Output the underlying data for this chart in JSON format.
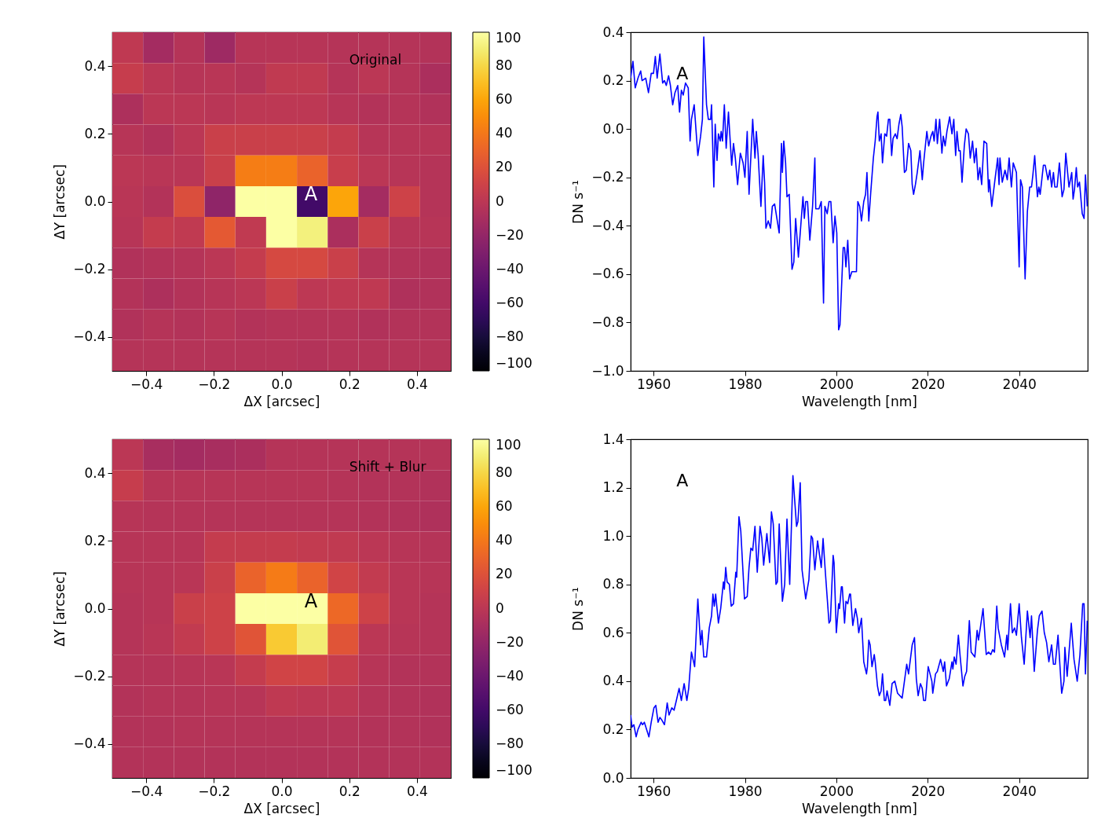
{
  "chart_data": [
    {
      "type": "heatmap",
      "xlabel": "ΔX [arcsec]",
      "ylabel": "ΔY [arcsec]",
      "cells": [
        [
          2,
          -12,
          -3,
          -15,
          -2,
          -2,
          -2,
          -3,
          -3,
          -3,
          -4
        ],
        [
          6,
          0,
          -2,
          -1,
          -3,
          3,
          3,
          -3,
          0,
          -3,
          -8
        ],
        [
          -7,
          0,
          0,
          -1,
          1,
          1,
          1,
          -2,
          -4,
          -3,
          -5
        ],
        [
          -2,
          -5,
          0,
          8,
          8,
          8,
          8,
          5,
          -2,
          -2,
          -2
        ],
        [
          0,
          -1,
          -1,
          8,
          43,
          43,
          30,
          7,
          0,
          -2,
          -3
        ],
        [
          -1,
          -4,
          18,
          -22,
          100,
          100,
          -60,
          60,
          -12,
          10,
          -3
        ],
        [
          -2,
          5,
          3,
          25,
          3,
          100,
          92,
          -8,
          8,
          -2,
          -2
        ],
        [
          -5,
          -4,
          -3,
          0,
          5,
          15,
          15,
          8,
          -3,
          -4,
          -5
        ],
        [
          -4,
          -7,
          -4,
          -2,
          0,
          8,
          1,
          2,
          2,
          -6,
          -5
        ],
        [
          -5,
          -3,
          -4,
          -2,
          -4,
          -3,
          -3,
          -3,
          -5,
          -4,
          -4
        ],
        [
          -3,
          -3,
          -3,
          -3,
          -3,
          -3,
          -4,
          -3,
          -3,
          -3,
          -3
        ]
      ],
      "clim": [
        -100,
        100
      ],
      "cticks": [
        100,
        80,
        60,
        40,
        20,
        0,
        -20,
        -40,
        -60,
        -80,
        -100
      ],
      "xlim": [
        -0.5,
        0.5
      ],
      "ylim": [
        -0.5,
        0.5
      ],
      "xticks": [
        -0.4,
        -0.2,
        {
          "value": 0.0,
          "label": "0.0"
        },
        0.2,
        0.4
      ],
      "yticks": [
        -0.4,
        -0.2,
        {
          "value": 0.0,
          "label": "0.0"
        },
        0.2,
        0.4
      ],
      "annotations": [
        "Original",
        "A"
      ],
      "grid": false
    },
    {
      "type": "line",
      "xlabel": "Wavelength [nm]",
      "ylabel": "DN s⁻¹",
      "x": [
        1955.0,
        1955.5,
        1956.0,
        1956.6,
        1957.2,
        1957.5,
        1958.3,
        1958.9,
        1959.5,
        1960.0,
        1960.4,
        1960.8,
        1961.4,
        1962.0,
        1962.4,
        1962.8,
        1963.3,
        1963.7,
        1964.2,
        1964.7,
        1965.3,
        1965.7,
        1966.1,
        1966.5,
        1967.0,
        1967.6,
        1968.0,
        1968.3,
        1968.9,
        1969.7,
        1970.3,
        1970.7,
        1971.0,
        1971.6,
        1972.0,
        1972.5,
        1972.7,
        1973.2,
        1973.5,
        1973.9,
        1974.2,
        1974.6,
        1974.8,
        1975.1,
        1975.5,
        1975.9,
        1976.4,
        1977.1,
        1977.5,
        1977.9,
        1978.4,
        1979.0,
        1979.6,
        1980.0,
        1980.5,
        1980.9,
        1981.7,
        1982.2,
        1982.5,
        1982.9,
        1983.5,
        1984.0,
        1984.3,
        1984.6,
        1985.1,
        1985.6,
        1986.0,
        1986.5,
        1987.0,
        1987.5,
        1988.0,
        1988.2,
        1988.5,
        1988.9,
        1989.2,
        1989.7,
        1990.3,
        1990.7,
        1991.1,
        1991.7,
        1992.7,
        1993.0,
        1993.3,
        1993.7,
        1994.2,
        1994.8,
        1995.3,
        1995.5,
        1996.2,
        1996.7,
        1997.2,
        1997.5,
        1998.0,
        1998.4,
        1998.8,
        1999.3,
        1999.7,
        2000.1,
        2000.5,
        2000.8,
        2001.5,
        2001.8,
        2002.1,
        2002.5,
        2002.9,
        2003.4,
        2004.0,
        2004.4,
        2004.7,
        2005.1,
        2005.5,
        2006.0,
        2006.4,
        2006.7,
        2007.1,
        2007.5,
        2008.1,
        2008.5,
        2008.9,
        2009.1,
        2009.4,
        2009.8,
        2010.1,
        2010.6,
        2011.0,
        2011.4,
        2011.7,
        2012.1,
        2012.4,
        2012.9,
        2013.3,
        2013.7,
        2014.1,
        2014.4,
        2014.9,
        2015.3,
        2015.8,
        2016.3,
        2016.6,
        2016.9,
        2017.3,
        2017.7,
        2018.3,
        2018.8,
        2019.1,
        2019.8,
        2020.2,
        2020.7,
        2021.1,
        2021.4,
        2021.8,
        2022.1,
        2022.6,
        2023.1,
        2023.4,
        2023.8,
        2024.2,
        2024.8,
        2025.3,
        2025.7,
        2026.1,
        2026.4,
        2026.8,
        2027.1,
        2027.5,
        2028.0,
        2028.4,
        2028.9,
        2029.3,
        2029.8,
        2030.2,
        2030.6,
        2031.0,
        2031.4,
        2031.8,
        2032.3,
        2032.9,
        2033.3,
        2033.5,
        2034.0,
        2034.7,
        2035.3,
        2035.6,
        2035.8,
        2036.3,
        2036.9,
        2037.4,
        2037.8,
        2038.3,
        2038.7,
        2039.4,
        2040.0,
        2040.3,
        2040.7,
        2041.3,
        2041.8,
        2042.3,
        2042.7,
        2043.0,
        2043.4,
        2044.0,
        2044.3,
        2044.6,
        2045.3,
        2045.7,
        2046.3,
        2046.7,
        2047.1,
        2047.5,
        2047.8,
        2048.3,
        2048.8,
        2049.4,
        2049.8,
        2050.2,
        2050.9,
        2051.5,
        2051.8,
        2052.1,
        2052.5,
        2052.8,
        2053.2,
        2053.8,
        2054.2,
        2054.5,
        2054.9
      ],
      "series": [
        {
          "color": "#0000ff",
          "values": [
            0.21,
            0.28,
            0.17,
            0.21,
            0.24,
            0.2,
            0.21,
            0.15,
            0.23,
            0.23,
            0.3,
            0.21,
            0.31,
            0.19,
            0.2,
            0.18,
            0.22,
            0.18,
            0.1,
            0.15,
            0.18,
            0.07,
            0.16,
            0.14,
            0.19,
            0.17,
            -0.05,
            0.04,
            0.1,
            -0.11,
            -0.03,
            0.04,
            0.38,
            0.1,
            0.04,
            0.04,
            0.1,
            -0.24,
            0.02,
            -0.13,
            -0.02,
            -0.05,
            -0.01,
            -0.05,
            0.1,
            -0.08,
            0.07,
            -0.15,
            -0.06,
            -0.12,
            -0.23,
            -0.1,
            -0.14,
            -0.2,
            -0.01,
            -0.27,
            0.04,
            -0.12,
            -0.01,
            -0.11,
            -0.32,
            -0.11,
            -0.22,
            -0.41,
            -0.38,
            -0.41,
            -0.32,
            -0.31,
            -0.37,
            -0.43,
            -0.06,
            -0.18,
            -0.05,
            -0.14,
            -0.28,
            -0.27,
            -0.58,
            -0.55,
            -0.37,
            -0.53,
            -0.28,
            -0.37,
            -0.3,
            -0.3,
            -0.46,
            -0.32,
            -0.12,
            -0.33,
            -0.33,
            -0.3,
            -0.72,
            -0.32,
            -0.35,
            -0.3,
            -0.3,
            -0.47,
            -0.36,
            -0.43,
            -0.83,
            -0.81,
            -0.49,
            -0.49,
            -0.57,
            -0.46,
            -0.62,
            -0.59,
            -0.59,
            -0.59,
            -0.3,
            -0.32,
            -0.38,
            -0.3,
            -0.27,
            -0.18,
            -0.38,
            -0.27,
            -0.12,
            -0.05,
            0.05,
            0.07,
            -0.05,
            -0.02,
            -0.14,
            -0.02,
            -0.03,
            0.04,
            0.04,
            -0.11,
            -0.04,
            -0.02,
            -0.04,
            0.02,
            0.06,
            0.01,
            -0.18,
            -0.17,
            -0.06,
            -0.09,
            -0.23,
            -0.27,
            -0.23,
            -0.18,
            -0.09,
            -0.21,
            -0.14,
            -0.01,
            -0.07,
            -0.03,
            -0.01,
            -0.05,
            0.04,
            -0.06,
            0.04,
            -0.1,
            -0.03,
            -0.07,
            -0.01,
            0.05,
            -0.02,
            0.04,
            -0.11,
            -0.01,
            -0.09,
            -0.09,
            -0.22,
            -0.07,
            0.0,
            -0.02,
            -0.12,
            -0.05,
            -0.14,
            -0.08,
            -0.21,
            -0.16,
            -0.23,
            -0.05,
            -0.06,
            -0.26,
            -0.21,
            -0.32,
            -0.21,
            -0.12,
            -0.23,
            -0.12,
            -0.22,
            -0.17,
            -0.21,
            -0.12,
            -0.24,
            -0.14,
            -0.18,
            -0.57,
            -0.21,
            -0.24,
            -0.62,
            -0.34,
            -0.24,
            -0.24,
            -0.19,
            -0.11,
            -0.28,
            -0.24,
            -0.27,
            -0.15,
            -0.15,
            -0.21,
            -0.17,
            -0.24,
            -0.18,
            -0.24,
            -0.24,
            -0.14,
            -0.28,
            -0.25,
            -0.1,
            -0.24,
            -0.18,
            -0.29,
            -0.25,
            -0.16,
            -0.24,
            -0.22,
            -0.35,
            -0.37,
            -0.19,
            -0.32
          ]
        }
      ],
      "xlim": [
        1955,
        2055
      ],
      "ylim": [
        -1.0,
        0.4
      ],
      "xticks": [
        1960,
        1980,
        2000,
        2020,
        2040
      ],
      "yticks": [
        {
          "value": -1.0,
          "label": "−1.0"
        },
        -0.8,
        -0.6,
        -0.4,
        -0.2,
        {
          "value": 0.0,
          "label": "0.0"
        },
        0.2,
        0.4
      ],
      "annotations": [
        "A"
      ],
      "grid": false
    },
    {
      "type": "heatmap",
      "xlabel": "ΔX [arcsec]",
      "ylabel": "ΔY [arcsec]",
      "cells": [
        [
          0,
          -10,
          -12,
          -10,
          -8,
          -3,
          -3,
          -3,
          -3,
          -3,
          -3
        ],
        [
          6,
          -2,
          -2,
          -2,
          -2,
          -2,
          -2,
          -3,
          -4,
          -4,
          -5
        ],
        [
          -2,
          -3,
          -3,
          -3,
          -3,
          -3,
          -3,
          -3,
          -4,
          -5,
          -6
        ],
        [
          -2,
          -2,
          -2,
          5,
          5,
          5,
          4,
          3,
          0,
          -2,
          -3
        ],
        [
          -2,
          -2,
          -1,
          8,
          30,
          42,
          30,
          12,
          4,
          -1,
          -2
        ],
        [
          -3,
          -2,
          8,
          10,
          100,
          100,
          100,
          33,
          10,
          -1,
          -3
        ],
        [
          -3,
          -1,
          4,
          10,
          22,
          75,
          90,
          22,
          0,
          -2,
          -3
        ],
        [
          -3,
          -3,
          -2,
          -1,
          5,
          12,
          12,
          6,
          -2,
          -4,
          -4
        ],
        [
          -4,
          -3,
          -3,
          -2,
          -2,
          2,
          1,
          1,
          -3,
          -4,
          -5
        ],
        [
          -4,
          -4,
          -3,
          -3,
          -3,
          -3,
          -3,
          -3,
          -4,
          -4,
          -5
        ],
        [
          -4,
          -4,
          -4,
          -4,
          -4,
          -4,
          -4,
          -4,
          -4,
          -4,
          -4
        ]
      ],
      "clim": [
        -100,
        100
      ],
      "cticks": [
        100,
        80,
        60,
        40,
        20,
        0,
        -20,
        -40,
        -60,
        -80,
        -100
      ],
      "xlim": [
        -0.5,
        0.5
      ],
      "ylim": [
        -0.5,
        0.5
      ],
      "xticks": [
        -0.4,
        -0.2,
        {
          "value": 0.0,
          "label": "0.0"
        },
        0.2,
        0.4
      ],
      "yticks": [
        -0.4,
        -0.2,
        {
          "value": 0.0,
          "label": "0.0"
        },
        0.2,
        0.4
      ],
      "annotations": [
        "Shift + Blur",
        "A"
      ],
      "grid": false
    },
    {
      "type": "line",
      "xlabel": "Wavelength [nm]",
      "ylabel": "DN s⁻¹",
      "x": [
        1955.0,
        1955.3,
        1955.7,
        1956.2,
        1956.6,
        1957.3,
        1957.6,
        1958.0,
        1958.5,
        1959.0,
        1959.5,
        1960.1,
        1960.5,
        1961.0,
        1961.4,
        1961.8,
        1962.4,
        1963.0,
        1963.4,
        1964.0,
        1964.5,
        1965.0,
        1965.6,
        1966.1,
        1966.7,
        1967.3,
        1967.7,
        1968.3,
        1969.0,
        1969.7,
        1970.3,
        1970.6,
        1971.0,
        1971.6,
        1972.2,
        1972.7,
        1973.0,
        1973.3,
        1973.6,
        1974.2,
        1974.7,
        1975.3,
        1975.5,
        1975.8,
        1976.1,
        1976.6,
        1977.0,
        1977.5,
        1978.0,
        1978.2,
        1978.7,
        1979.1,
        1979.9,
        1980.5,
        1980.9,
        1981.3,
        1981.7,
        1982.2,
        1982.7,
        1983.3,
        1983.7,
        1984.1,
        1984.8,
        1985.4,
        1985.8,
        1986.2,
        1986.8,
        1987.1,
        1987.5,
        1988.2,
        1988.7,
        1989.2,
        1989.8,
        1990.5,
        1991.3,
        1991.6,
        1992.1,
        1992.5,
        1993.3,
        1994.0,
        1994.5,
        1994.8,
        1995.3,
        1995.9,
        1996.7,
        1997.1,
        1997.6,
        1998.4,
        1998.7,
        1999.3,
        1999.5,
        2000.0,
        2000.5,
        2000.7,
        2001.1,
        2001.3,
        2001.8,
        2002.1,
        2002.5,
        2002.9,
        2003.1,
        2003.6,
        2004.2,
        2004.6,
        2004.9,
        2005.5,
        2006.0,
        2006.6,
        2006.8,
        2007.1,
        2007.4,
        2007.8,
        2008.3,
        2008.5,
        2009.0,
        2009.4,
        2009.8,
        2010.1,
        2010.5,
        2010.8,
        2011.1,
        2011.7,
        2012.2,
        2012.8,
        2013.4,
        2014.4,
        2014.9,
        2015.4,
        2015.8,
        2016.6,
        2017.1,
        2017.5,
        2017.9,
        2018.4,
        2018.8,
        2019.1,
        2019.5,
        2020.1,
        2020.9,
        2021.1,
        2021.7,
        2022.1,
        2022.8,
        2023.4,
        2023.7,
        2024.1,
        2024.7,
        2025.3,
        2025.5,
        2025.8,
        2026.2,
        2026.7,
        2027.1,
        2027.7,
        2028.1,
        2028.5,
        2029.1,
        2029.5,
        2030.3,
        2030.8,
        2031.1,
        2031.5,
        2032.1,
        2032.8,
        2033.3,
        2033.8,
        2034.2,
        2034.6,
        2035.1,
        2035.4,
        2036.1,
        2036.8,
        2037.3,
        2037.5,
        2038.1,
        2038.5,
        2039.0,
        2039.4,
        2040.0,
        2040.5,
        2041.1,
        2041.8,
        2042.4,
        2042.7,
        2043.3,
        2044.0,
        2044.4,
        2045.0,
        2045.5,
        2046.0,
        2046.5,
        2047.1,
        2047.5,
        2047.9,
        2048.5,
        2049.3,
        2049.8,
        2050.0,
        2050.5,
        2051.4,
        2052.0,
        2052.7,
        2053.3,
        2053.9,
        2054.2,
        2054.5,
        2054.9
      ],
      "series": [
        {
          "color": "#0000ff",
          "values": [
            0.26,
            0.21,
            0.22,
            0.17,
            0.2,
            0.23,
            0.22,
            0.23,
            0.2,
            0.17,
            0.23,
            0.29,
            0.3,
            0.23,
            0.25,
            0.24,
            0.22,
            0.31,
            0.26,
            0.29,
            0.28,
            0.32,
            0.37,
            0.32,
            0.39,
            0.32,
            0.37,
            0.52,
            0.46,
            0.74,
            0.55,
            0.61,
            0.5,
            0.5,
            0.62,
            0.67,
            0.76,
            0.71,
            0.76,
            0.64,
            0.7,
            0.81,
            0.78,
            0.87,
            0.81,
            0.8,
            0.71,
            0.72,
            0.85,
            0.83,
            1.08,
            1.02,
            0.74,
            0.75,
            0.87,
            0.95,
            0.94,
            1.04,
            0.85,
            1.04,
            0.99,
            0.88,
            1.01,
            0.89,
            1.1,
            1.05,
            0.8,
            0.81,
            1.05,
            0.73,
            0.8,
            1.07,
            0.8,
            1.25,
            1.04,
            1.06,
            1.22,
            0.86,
            0.74,
            0.82,
            1.0,
            0.99,
            0.86,
            0.98,
            0.87,
            0.99,
            0.85,
            0.64,
            0.65,
            0.92,
            0.89,
            0.6,
            0.72,
            0.7,
            0.79,
            0.79,
            0.64,
            0.73,
            0.72,
            0.76,
            0.76,
            0.63,
            0.7,
            0.66,
            0.6,
            0.66,
            0.48,
            0.43,
            0.46,
            0.57,
            0.55,
            0.46,
            0.51,
            0.48,
            0.38,
            0.34,
            0.36,
            0.43,
            0.32,
            0.32,
            0.36,
            0.3,
            0.39,
            0.4,
            0.35,
            0.33,
            0.4,
            0.47,
            0.43,
            0.55,
            0.58,
            0.41,
            0.34,
            0.39,
            0.37,
            0.32,
            0.32,
            0.46,
            0.4,
            0.35,
            0.43,
            0.44,
            0.49,
            0.44,
            0.48,
            0.38,
            0.41,
            0.48,
            0.45,
            0.5,
            0.47,
            0.59,
            0.5,
            0.38,
            0.42,
            0.44,
            0.65,
            0.52,
            0.5,
            0.61,
            0.57,
            0.62,
            0.7,
            0.51,
            0.52,
            0.51,
            0.53,
            0.52,
            0.71,
            0.62,
            0.55,
            0.5,
            0.59,
            0.53,
            0.72,
            0.6,
            0.62,
            0.59,
            0.72,
            0.58,
            0.47,
            0.69,
            0.58,
            0.67,
            0.44,
            0.61,
            0.67,
            0.69,
            0.6,
            0.56,
            0.48,
            0.55,
            0.47,
            0.47,
            0.59,
            0.35,
            0.4,
            0.54,
            0.42,
            0.64,
            0.49,
            0.4,
            0.51,
            0.72,
            0.72,
            0.43,
            0.65
          ]
        }
      ],
      "xlim": [
        1955,
        2055
      ],
      "ylim": [
        0.0,
        1.4
      ],
      "xticks": [
        1960,
        1980,
        2000,
        2020,
        2040
      ],
      "yticks": [
        {
          "value": 0.0,
          "label": "0.0"
        },
        0.2,
        0.4,
        0.6,
        0.8,
        {
          "value": 1.0,
          "label": "1.0"
        },
        1.2,
        1.4
      ],
      "annotations": [
        "A"
      ],
      "grid": false
    }
  ]
}
